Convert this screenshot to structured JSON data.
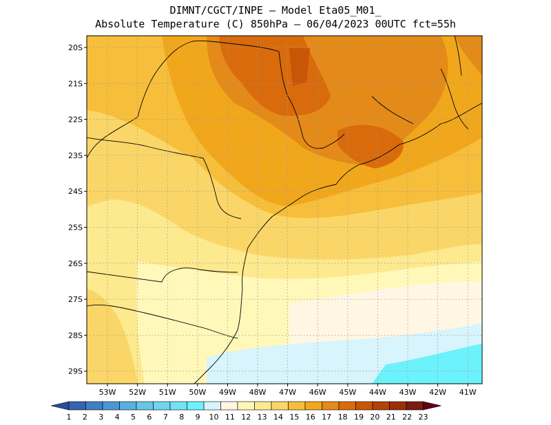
{
  "header": {
    "line1": "DIMNT/CGCT/INPE –  Model Eta05_M01_",
    "line2": "Absolute Temperature (C) 850hPa –  06/04/2023 00UTC fct=55h"
  },
  "map": {
    "lat_labels": [
      "20S",
      "21S",
      "22S",
      "23S",
      "24S",
      "25S",
      "26S",
      "27S",
      "28S",
      "29S"
    ],
    "lon_labels": [
      "53W",
      "52W",
      "51W",
      "50W",
      "49W",
      "48W",
      "47W",
      "46W",
      "45W",
      "44W",
      "43W",
      "42W",
      "41W"
    ]
  },
  "colorbar": {
    "labels": [
      "1",
      "2",
      "3",
      "4",
      "5",
      "6",
      "7",
      "8",
      "9",
      "10",
      "11",
      "12",
      "13",
      "14",
      "15",
      "16",
      "17",
      "18",
      "19",
      "20",
      "21",
      "22",
      "23"
    ],
    "colors": [
      "#2a4c9a",
      "#3565b0",
      "#3f7fc6",
      "#4b97d4",
      "#58b0de",
      "#66c6e6",
      "#6ed5ee",
      "#72e3f5",
      "#6cf2fb",
      "#d8f4fd",
      "#fff6e4",
      "#fff8b8",
      "#fde98e",
      "#f9d667",
      "#f6be3a",
      "#f1a71c",
      "#e48a18",
      "#d96b0c",
      "#c95607",
      "#b24308",
      "#9b2f0b",
      "#7c1a14",
      "#640012"
    ]
  }
}
